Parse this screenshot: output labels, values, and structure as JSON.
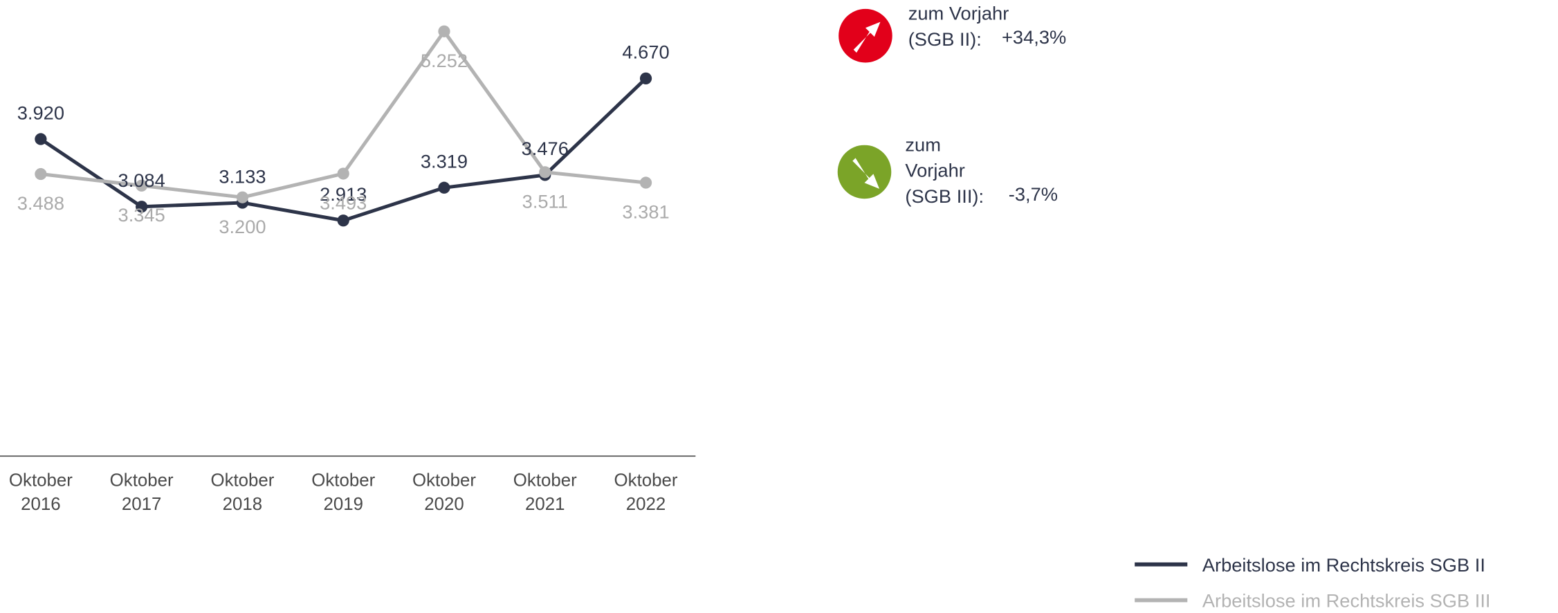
{
  "chart_data": {
    "type": "line",
    "categories": [
      "Oktober 2016",
      "Oktober 2017",
      "Oktober 2018",
      "Oktober 2019",
      "Oktober 2020",
      "Oktober 2021",
      "Oktober 2022"
    ],
    "series": [
      {
        "name": "Arbeitslose im Rechtskreis SGB II",
        "color": "#2d3449",
        "values": [
          3920,
          3084,
          3133,
          2913,
          3319,
          3476,
          4670
        ],
        "value_labels": [
          "3.920",
          "3.084",
          "3.133",
          "2.913",
          "3.319",
          "3.476",
          "4.670"
        ]
      },
      {
        "name": "Arbeitslose im Rechtskreis SGB III",
        "color": "#b3b3b3",
        "values": [
          3488,
          3345,
          3200,
          3493,
          5252,
          3511,
          3381
        ],
        "value_labels": [
          "3.488",
          "3.345",
          "3.200",
          "3.493",
          "5.252",
          "3.511",
          "3.381"
        ]
      }
    ],
    "ylim": [
      0,
      5640
    ],
    "annotations": [
      {
        "lines": [
          "zum Vorjahr",
          "(SGB II):"
        ],
        "value": "+34,3%",
        "color": "#e2001a"
      },
      {
        "lines": [
          "zum",
          "Vorjahr",
          "(SGB III):"
        ],
        "value": "-3,7%",
        "color": "#7ba428"
      }
    ]
  }
}
